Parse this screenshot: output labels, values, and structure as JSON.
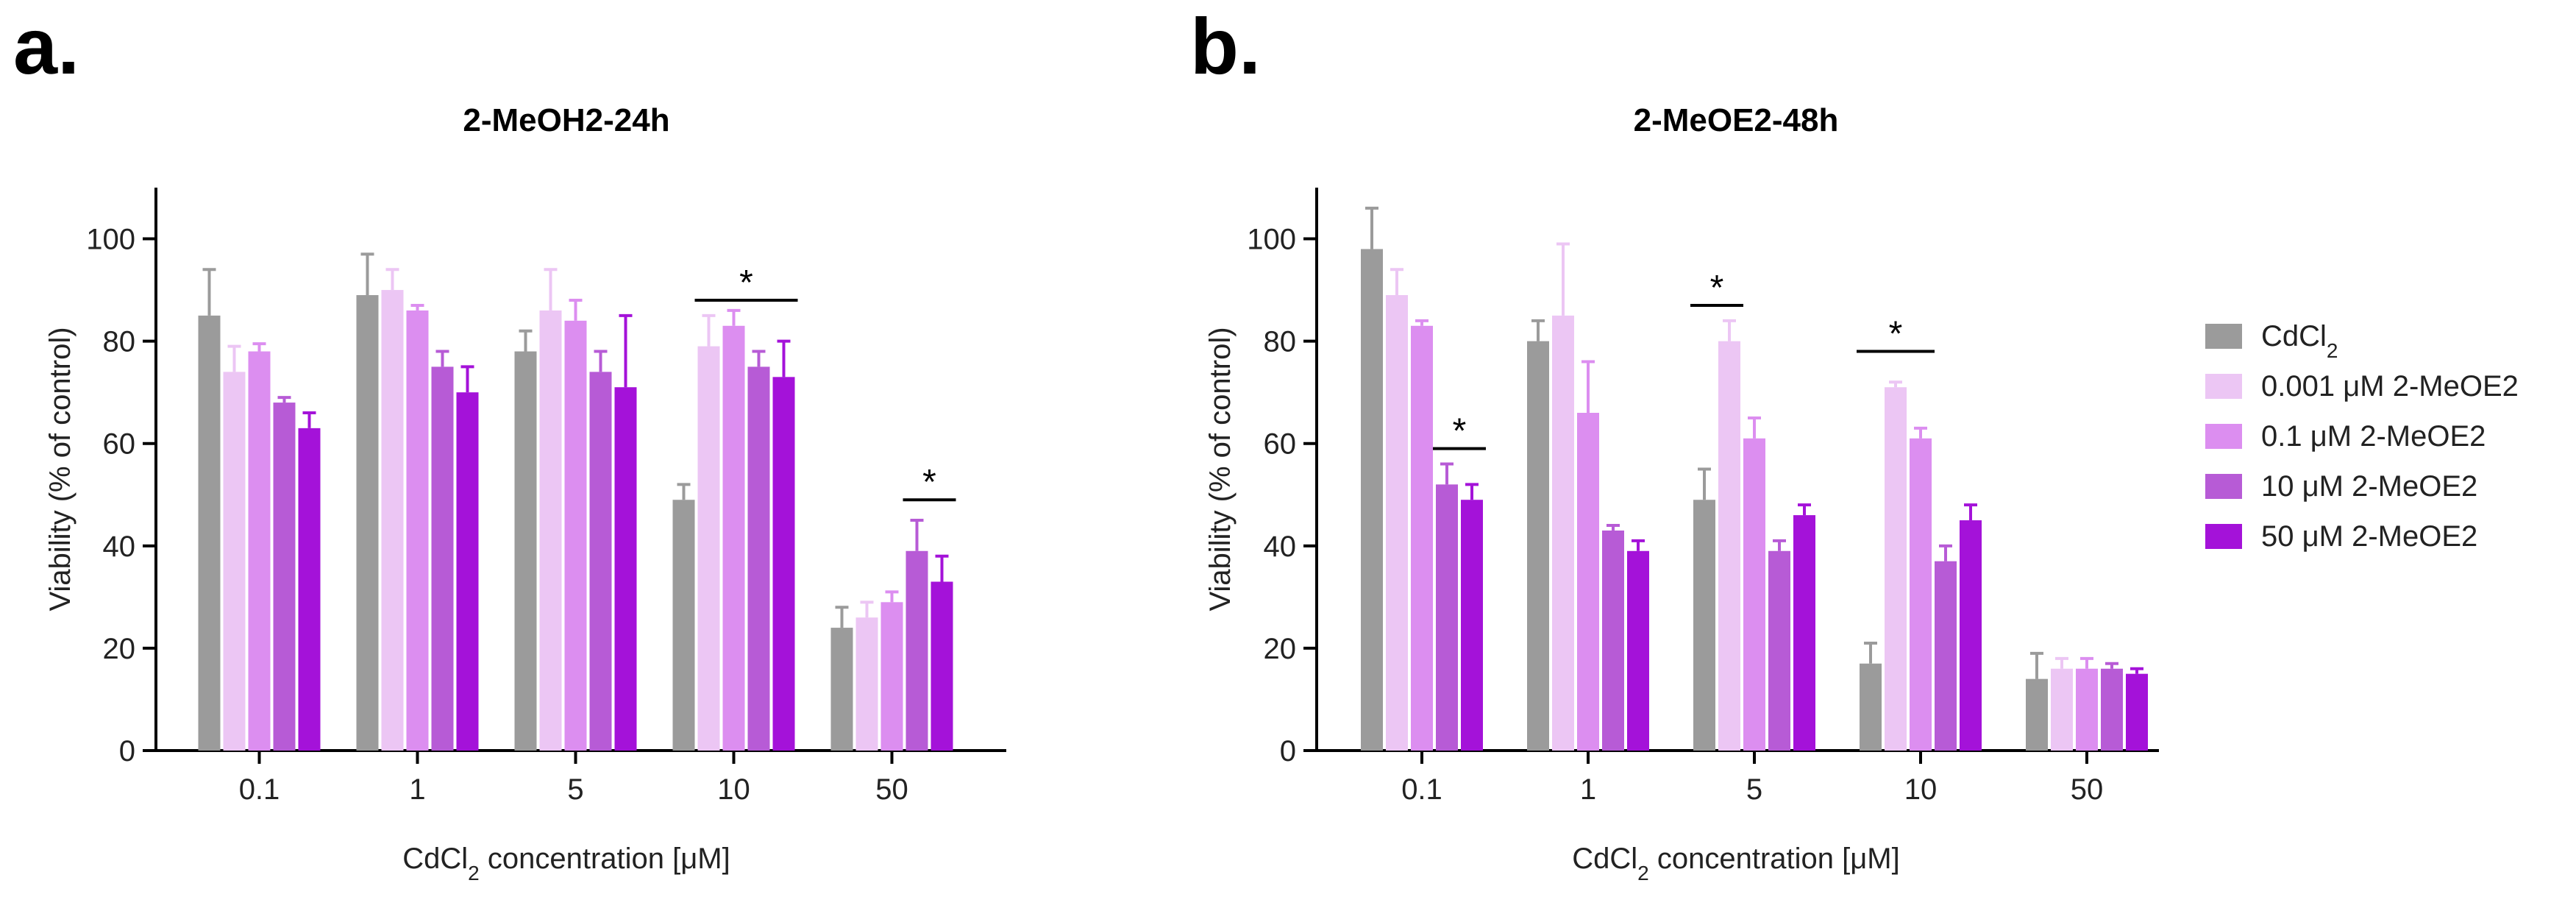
{
  "panels": [
    {
      "label": "a.",
      "chart_index": 0
    },
    {
      "label": "b.",
      "chart_index": 1
    }
  ],
  "legend": {
    "entries": [
      {
        "text": "CdCl",
        "sub": "2",
        "suffix": ""
      },
      {
        "text": "0.001 μM 2-MeOE2",
        "sub": "",
        "suffix": ""
      },
      {
        "text": "0.1 μM 2-MeOE2",
        "sub": "",
        "suffix": ""
      },
      {
        "text": "10 μM 2-MeOE2",
        "sub": "",
        "suffix": ""
      },
      {
        "text": "50 μM 2-MeOE2",
        "sub": "",
        "suffix": ""
      }
    ]
  },
  "colors": {
    "series": [
      "#9b9b9b",
      "#ecc6f4",
      "#dc8ef0",
      "#b75bd6",
      "#a412d9"
    ],
    "error_bar": [
      "#9b9b9b",
      "#ecc6f4",
      "#dc8ef0",
      "#b75bd6",
      "#a412d9"
    ]
  },
  "chart_data": [
    {
      "type": "bar",
      "title": "2-MeOH2-24h",
      "xlabel": {
        "pre": "CdCl",
        "sub": "2",
        "post": " concentration [μM]"
      },
      "ylabel": "Viability (% of control)",
      "ylim": [
        0,
        110
      ],
      "yticks": [
        0,
        20,
        40,
        60,
        80,
        100
      ],
      "categories": [
        "0.1",
        "1",
        "5",
        "10",
        "50"
      ],
      "series": [
        {
          "name": "CdCl2",
          "values": [
            85,
            89,
            78,
            49,
            24
          ],
          "errors": [
            9,
            8,
            4,
            3,
            4
          ]
        },
        {
          "name": "0.001 μM 2-MeOE2",
          "values": [
            74,
            90,
            86,
            79,
            26
          ],
          "errors": [
            5,
            4,
            8,
            6,
            3
          ]
        },
        {
          "name": "0.1 μM 2-MeOE2",
          "values": [
            78,
            86,
            84,
            83,
            29
          ],
          "errors": [
            1.5,
            1,
            4,
            3,
            2
          ]
        },
        {
          "name": "10 μM 2-MeOE2",
          "values": [
            68,
            75,
            74,
            75,
            39
          ],
          "errors": [
            1,
            3,
            4,
            3,
            6
          ]
        },
        {
          "name": "50 μM 2-MeOE2",
          "values": [
            63,
            70,
            71,
            73,
            33
          ],
          "errors": [
            3,
            5,
            14,
            7,
            5
          ]
        }
      ],
      "annotations": [
        {
          "text": "*",
          "category": "10",
          "from_series": 1,
          "to_series": 4,
          "y": 88
        },
        {
          "text": "*",
          "category": "50",
          "from_series": 3,
          "to_series": 4,
          "y": 49
        }
      ]
    },
    {
      "type": "bar",
      "title": "2-MeOE2-48h",
      "xlabel": {
        "pre": "CdCl",
        "sub": "2",
        "post": " concentration [μM]"
      },
      "ylabel": "Viability (% of control)",
      "ylim": [
        0,
        110
      ],
      "yticks": [
        0,
        20,
        40,
        60,
        80,
        100
      ],
      "categories": [
        "0.1",
        "1",
        "5",
        "10",
        "50"
      ],
      "series": [
        {
          "name": "CdCl2",
          "values": [
            98,
            80,
            49,
            17,
            14
          ],
          "errors": [
            8,
            4,
            6,
            4,
            5
          ]
        },
        {
          "name": "0.001 μM 2-MeOE2",
          "values": [
            89,
            85,
            80,
            71,
            16
          ],
          "errors": [
            5,
            14,
            4,
            1,
            2
          ]
        },
        {
          "name": "0.1 μM 2-MeOE2",
          "values": [
            83,
            66,
            61,
            61,
            16
          ],
          "errors": [
            1,
            10,
            4,
            2,
            2
          ]
        },
        {
          "name": "10 μM 2-MeOE2",
          "values": [
            52,
            43,
            39,
            37,
            16
          ],
          "errors": [
            4,
            1,
            2,
            3,
            1
          ]
        },
        {
          "name": "50 μM 2-MeOE2",
          "values": [
            49,
            39,
            46,
            45,
            15
          ],
          "errors": [
            3,
            2,
            2,
            3,
            1
          ]
        }
      ],
      "annotations": [
        {
          "text": "*",
          "category": "0.1",
          "from_series": 3,
          "to_series": 4,
          "y": 59
        },
        {
          "text": "*",
          "category": "5",
          "from_series": 0,
          "to_series": 1,
          "y": 87
        },
        {
          "text": "*",
          "category": "10",
          "from_series": 0,
          "to_series": 2,
          "y": 78
        }
      ]
    }
  ]
}
